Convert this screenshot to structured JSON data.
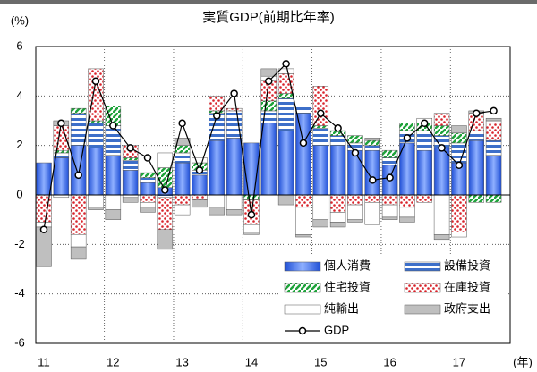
{
  "chart_data": {
    "type": "bar",
    "title": "実質GDP(前期比年率)",
    "y_label": "(%)",
    "x_label": "(年)",
    "categories": [
      "11",
      null,
      null,
      null,
      "12",
      null,
      null,
      null,
      "13",
      null,
      null,
      null,
      "14",
      null,
      null,
      null,
      "15",
      null,
      null,
      null,
      "16",
      null,
      null,
      null,
      "17",
      null,
      null
    ],
    "series": [
      {
        "name": "個人消費",
        "color": "#1f4fd6",
        "values": [
          1.3,
          1.5,
          2.0,
          1.9,
          1.6,
          1.0,
          0.5,
          0.3,
          1.3,
          0.8,
          2.2,
          2.3,
          2.1,
          2.9,
          2.6,
          3.3,
          2.0,
          2.0,
          1.8,
          1.8,
          1.2,
          2.1,
          1.8,
          1.9,
          1.3,
          2.2,
          1.6
        ]
      },
      {
        "name": "設備投資",
        "color": "#3d6fc9",
        "values": [
          0,
          0.2,
          1.3,
          1.0,
          1.2,
          0.4,
          0.2,
          -0.1,
          0.4,
          0.2,
          1.1,
          1.1,
          0,
          0.5,
          1.3,
          0.3,
          0.7,
          0.4,
          0.3,
          0.2,
          0.3,
          0.5,
          0.8,
          0.5,
          0.8,
          0.4,
          0.6
        ]
      },
      {
        "name": "住宅投資",
        "color": "#1ea33a",
        "values": [
          0,
          0.1,
          0.2,
          0.1,
          0.8,
          0.1,
          0.2,
          0.8,
          0.3,
          0.3,
          0.1,
          0,
          -0.2,
          0.4,
          0.2,
          0,
          0.1,
          0.2,
          0.3,
          0.2,
          0.3,
          0.3,
          0.3,
          0.4,
          0.4,
          -0.3,
          -0.3
        ]
      },
      {
        "name": "在庫投資",
        "color": "#d9232b",
        "values": [
          -1.1,
          1.0,
          -1.6,
          2.1,
          0,
          0.5,
          -0.3,
          -1.3,
          -0.4,
          -0.2,
          0.6,
          0.1,
          -1.0,
          0.8,
          0.8,
          -0.5,
          1.6,
          -0.7,
          -0.4,
          -0.3,
          -0.4,
          -0.5,
          -0.3,
          0.5,
          -1.5,
          0.7,
          0.7
        ]
      },
      {
        "name": "純輸出",
        "color": "#ffffff",
        "values": [
          -0.2,
          -0.1,
          -0.5,
          -0.5,
          -0.6,
          -0.1,
          -0.2,
          0.6,
          -0.4,
          0.2,
          -0.5,
          -0.6,
          -0.3,
          0.2,
          0.2,
          -1.1,
          -1.0,
          -0.4,
          -0.6,
          -0.9,
          -0.5,
          -0.4,
          0.2,
          -1.6,
          -0.2,
          0,
          0.1
        ]
      },
      {
        "name": "政府支出",
        "color": "#bfbfbf",
        "values": [
          -1.6,
          0.2,
          -0.5,
          -0.1,
          -0.4,
          -0.2,
          -0.2,
          -0.8,
          0.3,
          -0.3,
          -0.3,
          -0.2,
          -0.1,
          0.3,
          -0.4,
          -0.1,
          -0.3,
          -0.2,
          -0.1,
          0.1,
          -0.1,
          -0.2,
          0,
          -0.2,
          0.3,
          0.1,
          0.1
        ]
      },
      {
        "name": "GDP",
        "type": "line",
        "color": "#000000",
        "values": [
          -1.4,
          2.9,
          0.8,
          4.6,
          2.8,
          1.9,
          1.5,
          0.2,
          2.9,
          1.0,
          3.2,
          4.1,
          -0.8,
          4.6,
          5.3,
          2.1,
          3.3,
          2.7,
          1.7,
          0.6,
          0.7,
          2.3,
          2.9,
          1.9,
          1.2,
          3.3,
          3.4
        ]
      }
    ],
    "ylim": [
      -6,
      6
    ],
    "yticks": [
      -6,
      -4,
      -2,
      0,
      2,
      4,
      6
    ],
    "grid": true,
    "legend": "lower right"
  }
}
